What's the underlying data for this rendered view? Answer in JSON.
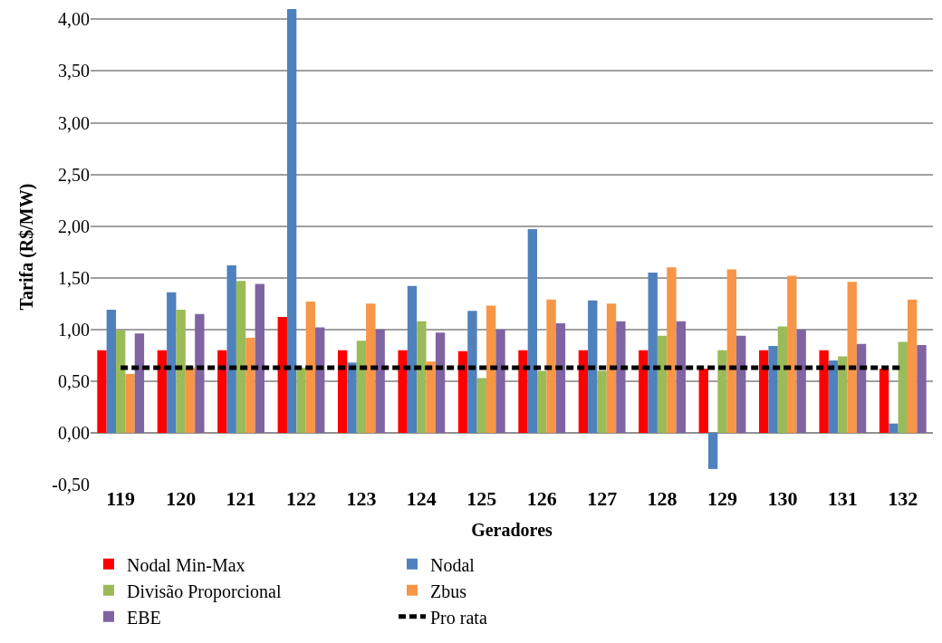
{
  "chart_data": {
    "type": "bar",
    "xlabel": "Geradores",
    "ylabel": "Tarifa (R$/MW)",
    "categories": [
      "119",
      "120",
      "121",
      "122",
      "123",
      "124",
      "125",
      "126",
      "127",
      "128",
      "129",
      "130",
      "131",
      "132"
    ],
    "series": [
      {
        "name": "Nodal Min-Max",
        "color": "#ff0000",
        "values": [
          0.8,
          0.8,
          0.8,
          1.12,
          0.8,
          0.8,
          0.79,
          0.8,
          0.8,
          0.8,
          0.62,
          0.8,
          0.8,
          0.62
        ]
      },
      {
        "name": "Nodal",
        "color": "#4f81bd",
        "values": [
          1.19,
          1.36,
          1.62,
          4.1,
          0.68,
          1.42,
          1.18,
          1.97,
          1.28,
          1.55,
          -0.35,
          0.84,
          0.7,
          0.09
        ]
      },
      {
        "name": "Divisão Proporcional",
        "color": "#9bbb59",
        "values": [
          0.99,
          1.19,
          1.47,
          0.63,
          0.89,
          1.08,
          0.53,
          0.6,
          0.6,
          0.94,
          0.8,
          1.03,
          0.74,
          0.88
        ]
      },
      {
        "name": "Zbus",
        "color": "#f79646",
        "values": [
          0.57,
          0.63,
          0.92,
          1.27,
          1.25,
          0.69,
          1.23,
          1.29,
          1.25,
          1.6,
          1.58,
          1.52,
          1.46,
          1.29
        ]
      },
      {
        "name": "EBE",
        "color": "#8064a2",
        "values": [
          0.96,
          1.15,
          1.44,
          1.02,
          1.0,
          0.97,
          1.0,
          1.06,
          1.08,
          1.08,
          0.94,
          1.0,
          0.86,
          0.85
        ]
      },
      {
        "name": "Pro rata",
        "color": "#000000",
        "type": "line",
        "line_style": "dashed",
        "marker": "none",
        "values": [
          0.63,
          0.63,
          0.63,
          0.63,
          0.63,
          0.63,
          0.63,
          0.63,
          0.63,
          0.63,
          0.63,
          0.63,
          0.63,
          0.63
        ]
      }
    ],
    "ylim": [
      -0.5,
      4.1
    ],
    "yticks": [
      {
        "value": -0.5,
        "label": "-0,50"
      },
      {
        "value": 0,
        "label": "0,00"
      },
      {
        "value": 0.5,
        "label": "0,50"
      },
      {
        "value": 1,
        "label": "1,00"
      },
      {
        "value": 1.5,
        "label": "1,50"
      },
      {
        "value": 2,
        "label": "2,00"
      },
      {
        "value": 2.5,
        "label": "2,50"
      },
      {
        "value": 3,
        "label": "3,00"
      },
      {
        "value": 3.5,
        "label": "3,50"
      },
      {
        "value": 4,
        "label": "4,00"
      }
    ],
    "grid": "y",
    "legend": "bottom"
  }
}
